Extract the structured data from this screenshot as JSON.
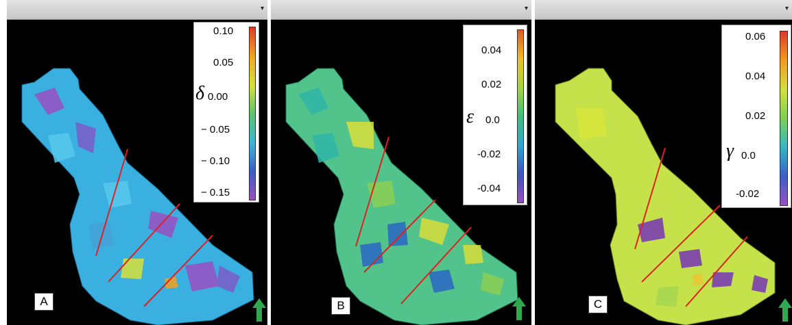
{
  "panels": [
    {
      "id": "A",
      "label": "A",
      "symbol": "δ",
      "ticks": [
        "0.10",
        "0.05",
        "0.00",
        "− 0.05",
        "− 0.10",
        "− 0.15"
      ],
      "colorbar": [
        "#e03b22",
        "#f3a21f",
        "#d7e13a",
        "#5cc46a",
        "#3ab7d8",
        "#3a5fc6",
        "#9a4fc2"
      ],
      "fill_colors": [
        "#3ab0e0",
        "#58c9ee",
        "#9a4fc2",
        "#7c5cc8",
        "#46a3d6"
      ]
    },
    {
      "id": "B",
      "label": "B",
      "symbol": "ε",
      "ticks": [
        "0.04",
        "0.02",
        "0.0",
        "-0.02",
        "-0.04"
      ],
      "colorbar": [
        "#e05a22",
        "#f0c020",
        "#a6d43c",
        "#3fbf7a",
        "#2ea8d4",
        "#3a56c0",
        "#9a4fc2"
      ],
      "fill_colors": [
        "#2fb7a8",
        "#52c38a",
        "#8ccf56",
        "#d8de3a",
        "#2b67c4"
      ]
    },
    {
      "id": "C",
      "label": "C",
      "symbol": "γ",
      "ticks": [
        "0.06",
        "0.04",
        "0.02",
        "0.0",
        "-0.02"
      ],
      "colorbar": [
        "#e0382a",
        "#f39a1f",
        "#d4e03a",
        "#7ccf54",
        "#33b7c4",
        "#3a60c8",
        "#9a4fc2"
      ],
      "fill_colors": [
        "#c6e24a",
        "#d7e63c",
        "#a8d850",
        "#7b3fb0",
        "#e8c83a"
      ]
    }
  ],
  "arrow_color": "#2fa84f"
}
